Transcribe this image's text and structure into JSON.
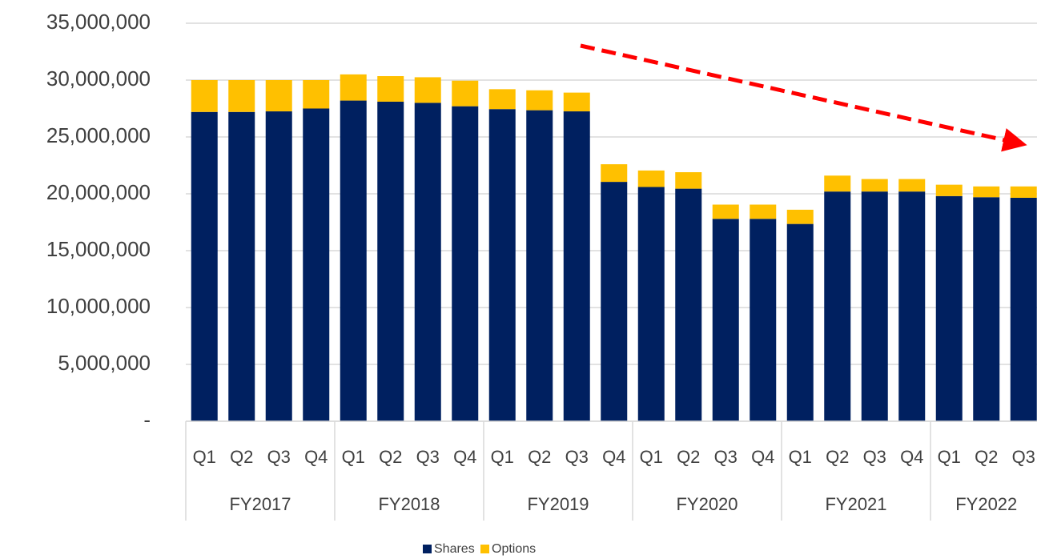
{
  "chart_data": {
    "type": "stacked_bar",
    "categories": [
      "Q1",
      "Q2",
      "Q3",
      "Q4",
      "Q1",
      "Q2",
      "Q3",
      "Q4",
      "Q1",
      "Q2",
      "Q3",
      "Q4",
      "Q1",
      "Q2",
      "Q3",
      "Q4",
      "Q1",
      "Q2",
      "Q3",
      "Q4",
      "Q1",
      "Q2",
      "Q3"
    ],
    "groups": [
      {
        "name": "FY2017",
        "count": 4
      },
      {
        "name": "FY2018",
        "count": 4
      },
      {
        "name": "FY2019",
        "count": 4
      },
      {
        "name": "FY2020",
        "count": 4
      },
      {
        "name": "FY2021",
        "count": 4
      },
      {
        "name": "FY2022",
        "count": 3
      }
    ],
    "series": [
      {
        "name": "Shares",
        "color": "#002060",
        "values": [
          27200000,
          27200000,
          27250000,
          27500000,
          28200000,
          28100000,
          28000000,
          27700000,
          27450000,
          27350000,
          27250000,
          21050000,
          20600000,
          20450000,
          17800000,
          17800000,
          17350000,
          20200000,
          20200000,
          20200000,
          19800000,
          19700000,
          19650000
        ]
      },
      {
        "name": "Options",
        "color": "#ffc000",
        "values": [
          2800000,
          2800000,
          2750000,
          2500000,
          2300000,
          2250000,
          2250000,
          2250000,
          1750000,
          1750000,
          1650000,
          1550000,
          1450000,
          1450000,
          1250000,
          1250000,
          1250000,
          1400000,
          1100000,
          1100000,
          1000000,
          950000,
          1000000
        ]
      }
    ],
    "ylim": [
      0,
      35000000
    ],
    "yticks": [
      {
        "value": 0,
        "label": "-"
      },
      {
        "value": 5000000,
        "label": "5,000,000"
      },
      {
        "value": 10000000,
        "label": "10,000,000"
      },
      {
        "value": 15000000,
        "label": "15,000,000"
      },
      {
        "value": 20000000,
        "label": "20,000,000"
      },
      {
        "value": 25000000,
        "label": "25,000,000"
      },
      {
        "value": 30000000,
        "label": "30,000,000"
      },
      {
        "value": 35000000,
        "label": "35,000,000"
      }
    ],
    "grid": true
  }
}
